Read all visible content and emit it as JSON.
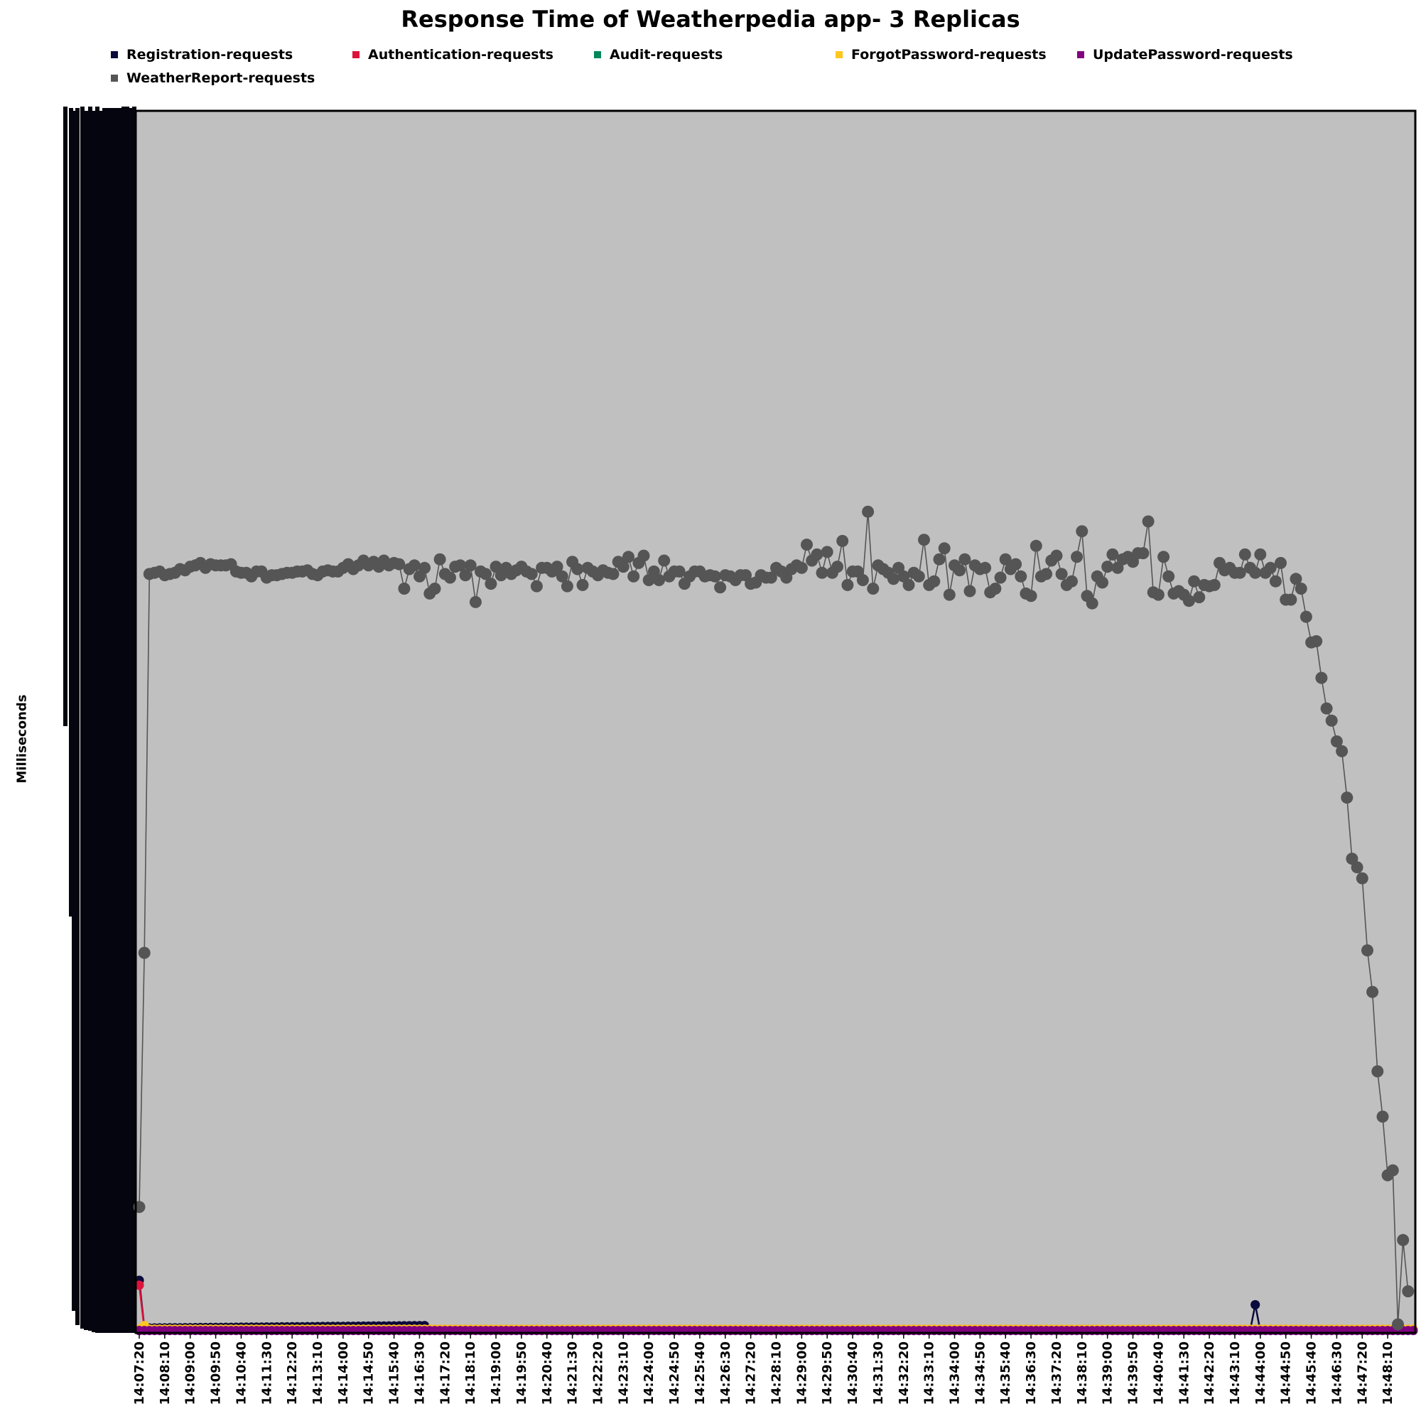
{
  "chart_data": {
    "type": "line",
    "title": "Response Time of Weatherpedia app- 3 Replicas",
    "xlabel": "",
    "ylabel": "Milliseconds",
    "grid": false,
    "legend_position": "top",
    "background_color": "#c0c0c0",
    "x_ticks": [
      "14:07:20",
      "14:08:10",
      "14:09:00",
      "14:09:50",
      "14:10:40",
      "14:11:30",
      "14:12:20",
      "14:13:10",
      "14:14:00",
      "14:14:50",
      "14:15:40",
      "14:16:30",
      "14:17:20",
      "14:18:10",
      "14:19:00",
      "14:19:50",
      "14:20:40",
      "14:21:30",
      "14:22:20",
      "14:23:10",
      "14:24:00",
      "14:24:50",
      "14:25:40",
      "14:26:30",
      "14:27:20",
      "14:28:10",
      "14:29:00",
      "14:29:50",
      "14:30:40",
      "14:31:30",
      "14:32:20",
      "14:33:10",
      "14:34:00",
      "14:34:50",
      "14:35:40",
      "14:36:30",
      "14:37:20",
      "14:38:10",
      "14:39:00",
      "14:39:50",
      "14:40:40",
      "14:41:30",
      "14:42:20",
      "14:43:10",
      "14:44:00",
      "14:44:50",
      "14:45:40",
      "14:46:30",
      "14:47:20",
      "14:48:10"
    ],
    "y_ticks_note": "y-axis tick labels are drawn as an overlapping, unreadable black block",
    "ylim": [
      0,
      100
    ],
    "series": [
      {
        "name": "Registration-requests",
        "color": "#0a0a3c",
        "points": [
          [
            0,
            4.3
          ],
          [
            1,
            0.4
          ],
          [
            56,
            0.6
          ],
          [
            57,
            0.2
          ],
          [
            218,
            0.2
          ],
          [
            219,
            2.3
          ],
          [
            220,
            0.2
          ],
          [
            250,
            0.2
          ]
        ]
      },
      {
        "name": "Authentication-requests",
        "color": "#dc143c",
        "points": [
          [
            0,
            3.9
          ],
          [
            1,
            0.3
          ],
          [
            250,
            0.3
          ]
        ]
      },
      {
        "name": "Audit-requests",
        "color": "#00875a",
        "points": [
          [
            0,
            0.2
          ],
          [
            250,
            0.2
          ]
        ]
      },
      {
        "name": "ForgotPassword-requests",
        "color": "#ffc61e",
        "points": [
          [
            0,
            0.3
          ],
          [
            1,
            0.6
          ],
          [
            2,
            0.3
          ],
          [
            250,
            0.3
          ]
        ]
      },
      {
        "name": "UpdatePassword-requests",
        "color": "#800080",
        "points": [
          [
            0,
            0.2
          ],
          [
            250,
            0.2
          ]
        ]
      },
      {
        "name": "WeatherReport-requests",
        "color": "#555555",
        "values": [
          10.3,
          31.1,
          62.1,
          62.2,
          62.3,
          62.0,
          62.1,
          62.2,
          62.5,
          62.4,
          62.7,
          62.8,
          63.0,
          62.6,
          62.9,
          62.8,
          62.8,
          62.8,
          62.9,
          62.3,
          62.2,
          62.2,
          61.9,
          62.3,
          62.3,
          61.8,
          62.0,
          62.0,
          62.1,
          62.2,
          62.2,
          62.3,
          62.3,
          62.4,
          62.1,
          62.0,
          62.3,
          62.4,
          62.3,
          62.3,
          62.6,
          62.9,
          62.5,
          62.8,
          63.2,
          62.8,
          63.1,
          62.7,
          63.2,
          62.8,
          63.0,
          62.9,
          60.9,
          62.5,
          62.8,
          61.9,
          62.6,
          60.5,
          60.9,
          63.3,
          62.1,
          61.8,
          62.7,
          62.8,
          62.0,
          62.8,
          59.8,
          62.3,
          62.1,
          61.3,
          62.7,
          62.0,
          62.6,
          62.1,
          62.4,
          62.7,
          62.3,
          62.1,
          61.1,
          62.6,
          62.6,
          62.3,
          62.7,
          61.9,
          61.1,
          63.1,
          62.5,
          61.2,
          62.6,
          62.3,
          62.0,
          62.4,
          62.2,
          62.1,
          63.1,
          62.7,
          63.5,
          61.9,
          63.0,
          63.6,
          61.6,
          62.3,
          61.6,
          63.2,
          61.9,
          62.3,
          62.3,
          61.3,
          61.9,
          62.3,
          62.3,
          61.9,
          62.0,
          61.9,
          61.0,
          62.0,
          61.9,
          61.6,
          62.0,
          62.0,
          61.3,
          61.4,
          62.0,
          61.8,
          61.8,
          62.6,
          62.3,
          61.8,
          62.5,
          62.8,
          62.6,
          64.5,
          63.2,
          63.7,
          62.2,
          63.9,
          62.2,
          62.7,
          64.8,
          61.2,
          62.3,
          62.3,
          61.6,
          67.2,
          60.9,
          62.8,
          62.5,
          62.2,
          61.7,
          62.6,
          61.9,
          61.2,
          62.2,
          61.9,
          64.9,
          61.2,
          61.5,
          63.3,
          64.2,
          60.4,
          62.8,
          62.4,
          63.3,
          60.7,
          62.8,
          62.5,
          62.6,
          60.6,
          60.9,
          61.8,
          63.3,
          62.5,
          62.9,
          61.9,
          60.5,
          60.3,
          64.4,
          61.9,
          62.1,
          63.2,
          63.6,
          62.1,
          61.2,
          61.5,
          63.5,
          65.6,
          60.3,
          59.7,
          61.9,
          61.4,
          62.7,
          63.7,
          62.6,
          63.3,
          63.5,
          63.1,
          63.8,
          63.8,
          66.4,
          60.6,
          60.4,
          63.5,
          61.9,
          60.5,
          60.7,
          60.4,
          59.9,
          61.5,
          60.2,
          61.2,
          61.1,
          61.2,
          63.0,
          62.4,
          62.6,
          62.2,
          62.2,
          63.7,
          62.6,
          62.2,
          63.7,
          62.2,
          62.6,
          61.5,
          63.0,
          60.0,
          60.0,
          61.7,
          60.9,
          58.6,
          56.5,
          56.6,
          53.6,
          51.1,
          50.1,
          48.4,
          47.6,
          43.8,
          38.8,
          38.1,
          37.2,
          31.3,
          27.9,
          21.4,
          17.7,
          12.9,
          13.3,
          0.7,
          7.6,
          3.4
        ]
      }
    ]
  }
}
